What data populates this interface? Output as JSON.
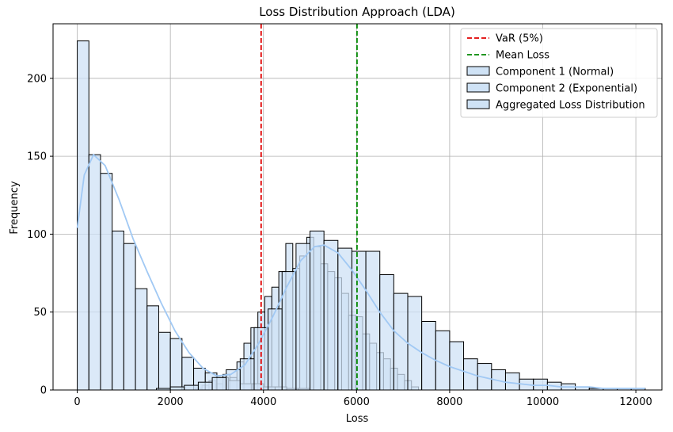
{
  "chart_data": {
    "type": "histogram",
    "title": "Loss Distribution Approach (LDA)",
    "xlabel": "Loss",
    "ylabel": "Frequency",
    "xlim": [
      -520,
      12560
    ],
    "ylim": [
      0,
      235
    ],
    "xticks": [
      0,
      2000,
      4000,
      6000,
      8000,
      10000,
      12000
    ],
    "yticks": [
      0,
      50,
      100,
      150,
      200
    ],
    "grid": true,
    "legend_position": "top-right",
    "colors": {
      "bar_fill": "#cfe2f5",
      "bar_edge": "#000000",
      "kde": "#a1c9f4",
      "var_line": "#e00000",
      "mean_line": "#008800"
    },
    "reference_lines": [
      {
        "name": "VaR (5%)",
        "x": 3950,
        "style": "dashed",
        "color": "#e00000"
      },
      {
        "name": "Mean Loss",
        "x": 6010,
        "style": "dashed",
        "color": "#008800"
      }
    ],
    "legend": [
      "VaR (5%)",
      "Mean Loss",
      "Component 1 (Normal)",
      "Component 2 (Exponential)",
      "Aggregated Loss Distribution"
    ],
    "series": [
      {
        "name": "Component 1 (Normal)",
        "bin_edges": [
          2530,
          2680,
          2830,
          2980,
          3130,
          3280,
          3430,
          3580,
          3730,
          3880,
          4030,
          4180,
          4330,
          4480,
          4630,
          4780,
          4930,
          5080,
          5230,
          5380,
          5530,
          5680,
          5830,
          5980,
          6130,
          6280,
          6430,
          6580,
          6730,
          6880,
          7030,
          7180,
          7330
        ],
        "counts": [
          1,
          3,
          6,
          4,
          10,
          8,
          18,
          30,
          40,
          50,
          60,
          66,
          76,
          94,
          78,
          86,
          98,
          92,
          81,
          76,
          72,
          62,
          48,
          47,
          36,
          30,
          24,
          20,
          14,
          10,
          6,
          2
        ]
      },
      {
        "name": "Component 2 (Exponential)",
        "bin_edges": [
          0,
          250,
          500,
          750,
          1000,
          1250,
          1500,
          1750,
          2000,
          2250,
          2500,
          2750,
          3000,
          3250,
          3500,
          3750,
          4000,
          4250,
          4500,
          4750,
          5000
        ],
        "counts": [
          224,
          151,
          139,
          102,
          94,
          65,
          54,
          37,
          33,
          21,
          14,
          11,
          8,
          6,
          4,
          4,
          2,
          2,
          1,
          1
        ]
      },
      {
        "name": "Aggregated Loss Distribution",
        "bin_edges": [
          1700,
          2000,
          2300,
          2600,
          2900,
          3200,
          3500,
          3800,
          4100,
          4400,
          4700,
          5000,
          5300,
          5600,
          5900,
          6200,
          6500,
          6800,
          7100,
          7400,
          7700,
          8000,
          8300,
          8600,
          8900,
          9200,
          9500,
          9800,
          10100,
          10400,
          10700,
          11000,
          11300,
          11600,
          11900,
          12200
        ],
        "counts": [
          1,
          2,
          3,
          5,
          8,
          13,
          20,
          40,
          52,
          76,
          94,
          102,
          96,
          91,
          89,
          89,
          74,
          62,
          60,
          44,
          38,
          31,
          20,
          17,
          13,
          11,
          7,
          7,
          5,
          4,
          2,
          1,
          1,
          1,
          1
        ]
      }
    ],
    "kde": {
      "x": [
        0,
        150,
        350,
        600,
        900,
        1200,
        1500,
        1800,
        2100,
        2400,
        2700,
        3000,
        3300,
        3600,
        3900,
        4200,
        4500,
        4800,
        5100,
        5300,
        5600,
        5900,
        6200,
        6500,
        6800,
        7100,
        7400,
        7700,
        8000,
        8300,
        8600,
        8900,
        9200,
        9500,
        9800,
        10100,
        10400,
        10700,
        11000,
        11300,
        11600,
        12000,
        12200
      ],
      "y": [
        104,
        138,
        151,
        144,
        122,
        97,
        76,
        56,
        38,
        24,
        14,
        9,
        10,
        16,
        30,
        47,
        66,
        83,
        92,
        93,
        88,
        77,
        64,
        50,
        38,
        30,
        24,
        19,
        15,
        12,
        9,
        7,
        5,
        4,
        3,
        3,
        2,
        2,
        2,
        1,
        1,
        1,
        1
      ]
    }
  }
}
